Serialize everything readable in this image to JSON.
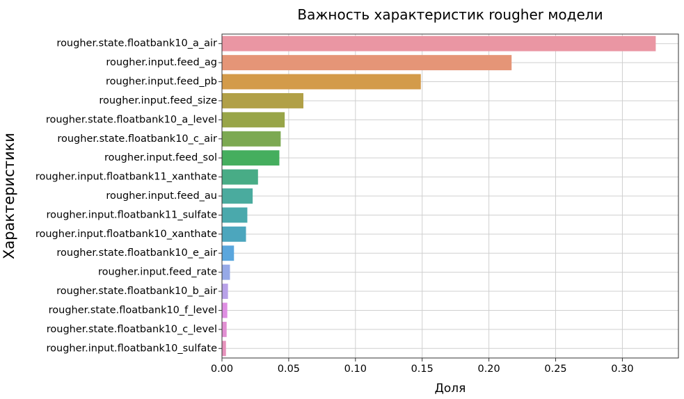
{
  "chart_data": {
    "type": "bar",
    "orientation": "horizontal",
    "title": "Важность характеристик rougher модели",
    "xlabel": "Доля",
    "ylabel": "Характеристики",
    "xlim": [
      0,
      0.342
    ],
    "xticks": [
      0.0,
      0.05,
      0.1,
      0.15,
      0.2,
      0.25,
      0.3
    ],
    "xtick_labels": [
      "0.00",
      "0.05",
      "0.10",
      "0.15",
      "0.20",
      "0.25",
      "0.30"
    ],
    "grid": true,
    "categories": [
      "rougher.state.floatbank10_a_air",
      "rougher.input.feed_ag",
      "rougher.input.feed_pb",
      "rougher.input.feed_size",
      "rougher.state.floatbank10_a_level",
      "rougher.state.floatbank10_c_air",
      "rougher.input.feed_sol",
      "rougher.input.floatbank11_xanthate",
      "rougher.input.feed_au",
      "rougher.input.floatbank11_sulfate",
      "rougher.input.floatbank10_xanthate",
      "rougher.state.floatbank10_e_air",
      "rougher.input.feed_rate",
      "rougher.state.floatbank10_b_air",
      "rougher.state.floatbank10_f_level",
      "rougher.state.floatbank10_c_level",
      "rougher.input.floatbank10_sulfate"
    ],
    "values": [
      0.325,
      0.217,
      0.149,
      0.061,
      0.047,
      0.044,
      0.043,
      0.027,
      0.023,
      0.019,
      0.018,
      0.009,
      0.006,
      0.0045,
      0.004,
      0.0035,
      0.003
    ],
    "colors": [
      "#ea96a3",
      "#e59577",
      "#d39b4a",
      "#b1a047",
      "#98a548",
      "#7ca952",
      "#45ae5e",
      "#48ac86",
      "#4aab9e",
      "#4aa9ac",
      "#4ca6bd",
      "#5aa6dd",
      "#96a9e7",
      "#b8a2e8",
      "#de8ee2",
      "#e18fd2",
      "#e692bc"
    ]
  }
}
